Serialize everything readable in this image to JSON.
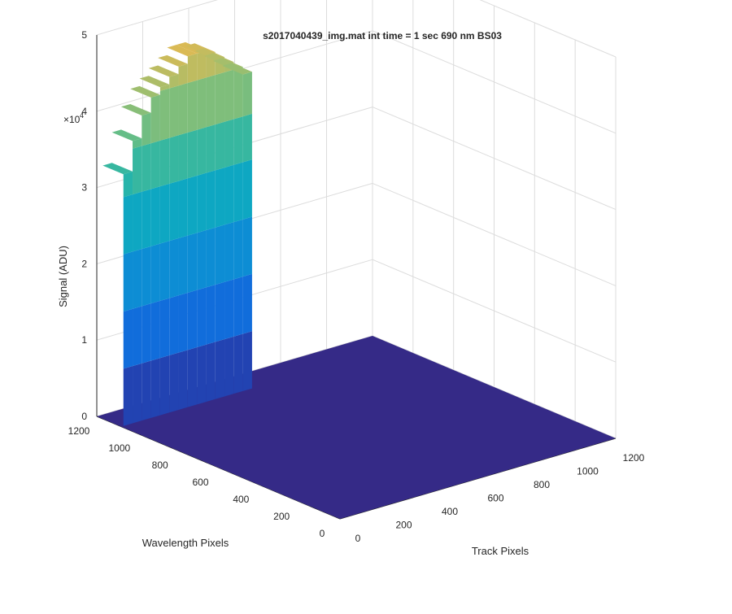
{
  "chart_data": {
    "type": "surface",
    "title": "s2017040439_img.mat int time = 1 sec  690 nm BS03",
    "xlabel": "Track Pixels",
    "ylabel": "Wavelength Pixels",
    "zlabel": "Signal (ADU)",
    "z_exponent_label": "×10",
    "z_exponent": "4",
    "x_ticks": [
      "0",
      "200",
      "400",
      "600",
      "800",
      "1000",
      "1200"
    ],
    "y_ticks": [
      "0",
      "200",
      "400",
      "600",
      "800",
      "1000",
      "1200"
    ],
    "z_ticks": [
      "0",
      "1",
      "2",
      "3",
      "4",
      "5"
    ],
    "xlim": [
      0,
      1200
    ],
    "ylim": [
      0,
      1200
    ],
    "zlim": [
      0,
      50000
    ],
    "grid": true,
    "colormap": "parula",
    "num_tracks": 14,
    "track_peak_signal": [
      33000,
      37000,
      40000,
      42000,
      43000,
      44000,
      45000,
      46000,
      46000,
      45500,
      44500,
      43500,
      42500,
      41500
    ],
    "background_signal": 0
  }
}
